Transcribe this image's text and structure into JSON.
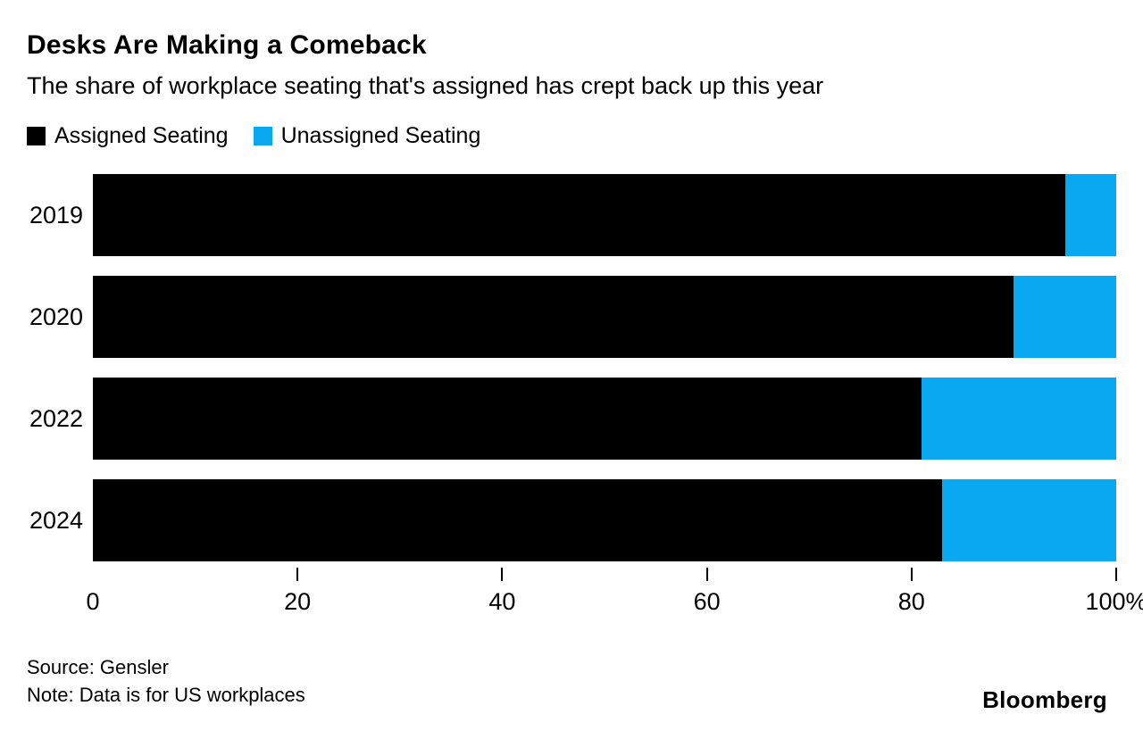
{
  "header": {
    "title": "Desks Are Making a Comeback",
    "subtitle": "The share of workplace seating that's assigned has crept back up this year"
  },
  "legend": [
    {
      "label": "Assigned Seating",
      "color": "#000000"
    },
    {
      "label": "Unassigned Seating",
      "color": "#0BA8F2"
    }
  ],
  "chart_data": {
    "type": "bar",
    "orientation": "horizontal",
    "stacked": true,
    "title": "Desks Are Making a Comeback",
    "subtitle": "The share of workplace seating that's assigned has crept back up this year",
    "categories": [
      "2019",
      "2020",
      "2022",
      "2024"
    ],
    "series": [
      {
        "name": "Assigned Seating",
        "color": "#000000",
        "values": [
          95,
          90,
          81,
          83
        ]
      },
      {
        "name": "Unassigned Seating",
        "color": "#0BA8F2",
        "values": [
          5,
          10,
          19,
          17
        ]
      }
    ],
    "xlim": [
      0,
      100
    ],
    "x_ticks": [
      0,
      20,
      40,
      60,
      80,
      100
    ],
    "x_tick_labels": [
      "0",
      "20",
      "40",
      "60",
      "80",
      "100%"
    ],
    "legend_position": "top",
    "grid": false,
    "unit": "%"
  },
  "footer": {
    "source": "Source: Gensler",
    "note": "Note: Data is for US workplaces",
    "brand": "Bloomberg"
  }
}
